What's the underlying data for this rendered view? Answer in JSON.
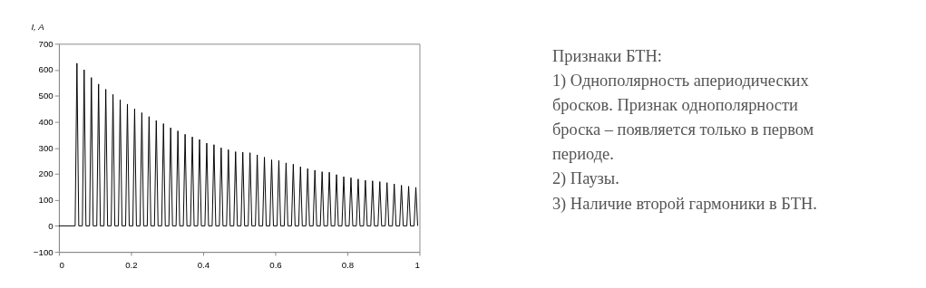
{
  "chart_data": [
    {
      "type": "line",
      "ylabel": "I, A",
      "xlim": [
        0,
        1
      ],
      "ylim": [
        -100,
        700
      ],
      "xticks": [
        0,
        0.2,
        0.4,
        0.6,
        0.8,
        1
      ],
      "yticks": [
        -100,
        0,
        100,
        200,
        300,
        400,
        500,
        600,
        700
      ],
      "grid": false,
      "legend": false,
      "marker": "none",
      "line_style": "solid",
      "series": [
        {
          "color": "#000000",
          "x": [
            0,
            0.045,
            0.05,
            0.055,
            0.065,
            0.07,
            0.075,
            0.085,
            0.09,
            0.095,
            0.105,
            0.11,
            0.115,
            0.125,
            0.13,
            0.135,
            0.145,
            0.15,
            0.155,
            0.165,
            0.17,
            0.175,
            0.185,
            0.19,
            0.195,
            0.205,
            0.21,
            0.215,
            0.225,
            0.23,
            0.235,
            0.245,
            0.25,
            0.255,
            0.265,
            0.27,
            0.275,
            0.285,
            0.29,
            0.295,
            0.305,
            0.31,
            0.315,
            0.325,
            0.33,
            0.335,
            0.345,
            0.35,
            0.355,
            0.365,
            0.37,
            0.375,
            0.385,
            0.39,
            0.395,
            0.405,
            0.41,
            0.415,
            0.425,
            0.43,
            0.435,
            0.445,
            0.45,
            0.455,
            0.465,
            0.47,
            0.475,
            0.485,
            0.49,
            0.495,
            0.505,
            0.51,
            0.515,
            0.525,
            0.53,
            0.535,
            0.545,
            0.55,
            0.555,
            0.565,
            0.57,
            0.575,
            0.585,
            0.59,
            0.595,
            0.605,
            0.61,
            0.615,
            0.625,
            0.63,
            0.635,
            0.645,
            0.65,
            0.655,
            0.665,
            0.67,
            0.675,
            0.685,
            0.69,
            0.695,
            0.705,
            0.71,
            0.715,
            0.725,
            0.73,
            0.735,
            0.745,
            0.75,
            0.755,
            0.765,
            0.77,
            0.775,
            0.785,
            0.79,
            0.795,
            0.805,
            0.81,
            0.815,
            0.825,
            0.83,
            0.835,
            0.845,
            0.85,
            0.855,
            0.865,
            0.87,
            0.875,
            0.885,
            0.89,
            0.895,
            0.905,
            0.91,
            0.915,
            0.925,
            0.93,
            0.935,
            0.945,
            0.95,
            0.955,
            0.965,
            0.97,
            0.975,
            0.985,
            0.99,
            0.995
          ],
          "values": [
            0,
            0,
            625,
            0,
            0,
            600,
            0,
            0,
            570,
            0,
            0,
            545,
            0,
            0,
            525,
            0,
            0,
            505,
            0,
            0,
            485,
            0,
            0,
            468,
            0,
            0,
            450,
            0,
            0,
            435,
            0,
            0,
            420,
            0,
            0,
            405,
            0,
            0,
            393,
            0,
            0,
            377,
            0,
            0,
            365,
            0,
            0,
            352,
            0,
            0,
            342,
            0,
            0,
            332,
            0,
            0,
            318,
            0,
            0,
            312,
            0,
            0,
            300,
            0,
            0,
            293,
            0,
            0,
            285,
            0,
            0,
            283,
            0,
            0,
            281,
            0,
            0,
            273,
            0,
            0,
            264,
            0,
            0,
            254,
            0,
            0,
            251,
            0,
            0,
            242,
            0,
            0,
            237,
            0,
            0,
            227,
            0,
            0,
            220,
            0,
            0,
            214,
            0,
            0,
            208,
            0,
            0,
            206,
            0,
            0,
            197,
            0,
            0,
            189,
            0,
            0,
            185,
            0,
            0,
            180,
            0,
            0,
            175,
            0,
            0,
            173,
            0,
            0,
            170,
            0,
            0,
            166,
            0,
            0,
            161,
            0,
            0,
            156,
            0,
            0,
            152,
            0,
            0,
            148,
            0
          ]
        }
      ]
    },
    {
      "type": "other",
      "title": "Признаки БТН:",
      "annotations": [
        "1) Однополярность апериодических",
        "бросков. Признак однополярности",
        "броска – появляется только в первом",
        "периоде.",
        "2) Паузы.",
        "3) Наличие второй гармоники в БТН."
      ]
    }
  ]
}
